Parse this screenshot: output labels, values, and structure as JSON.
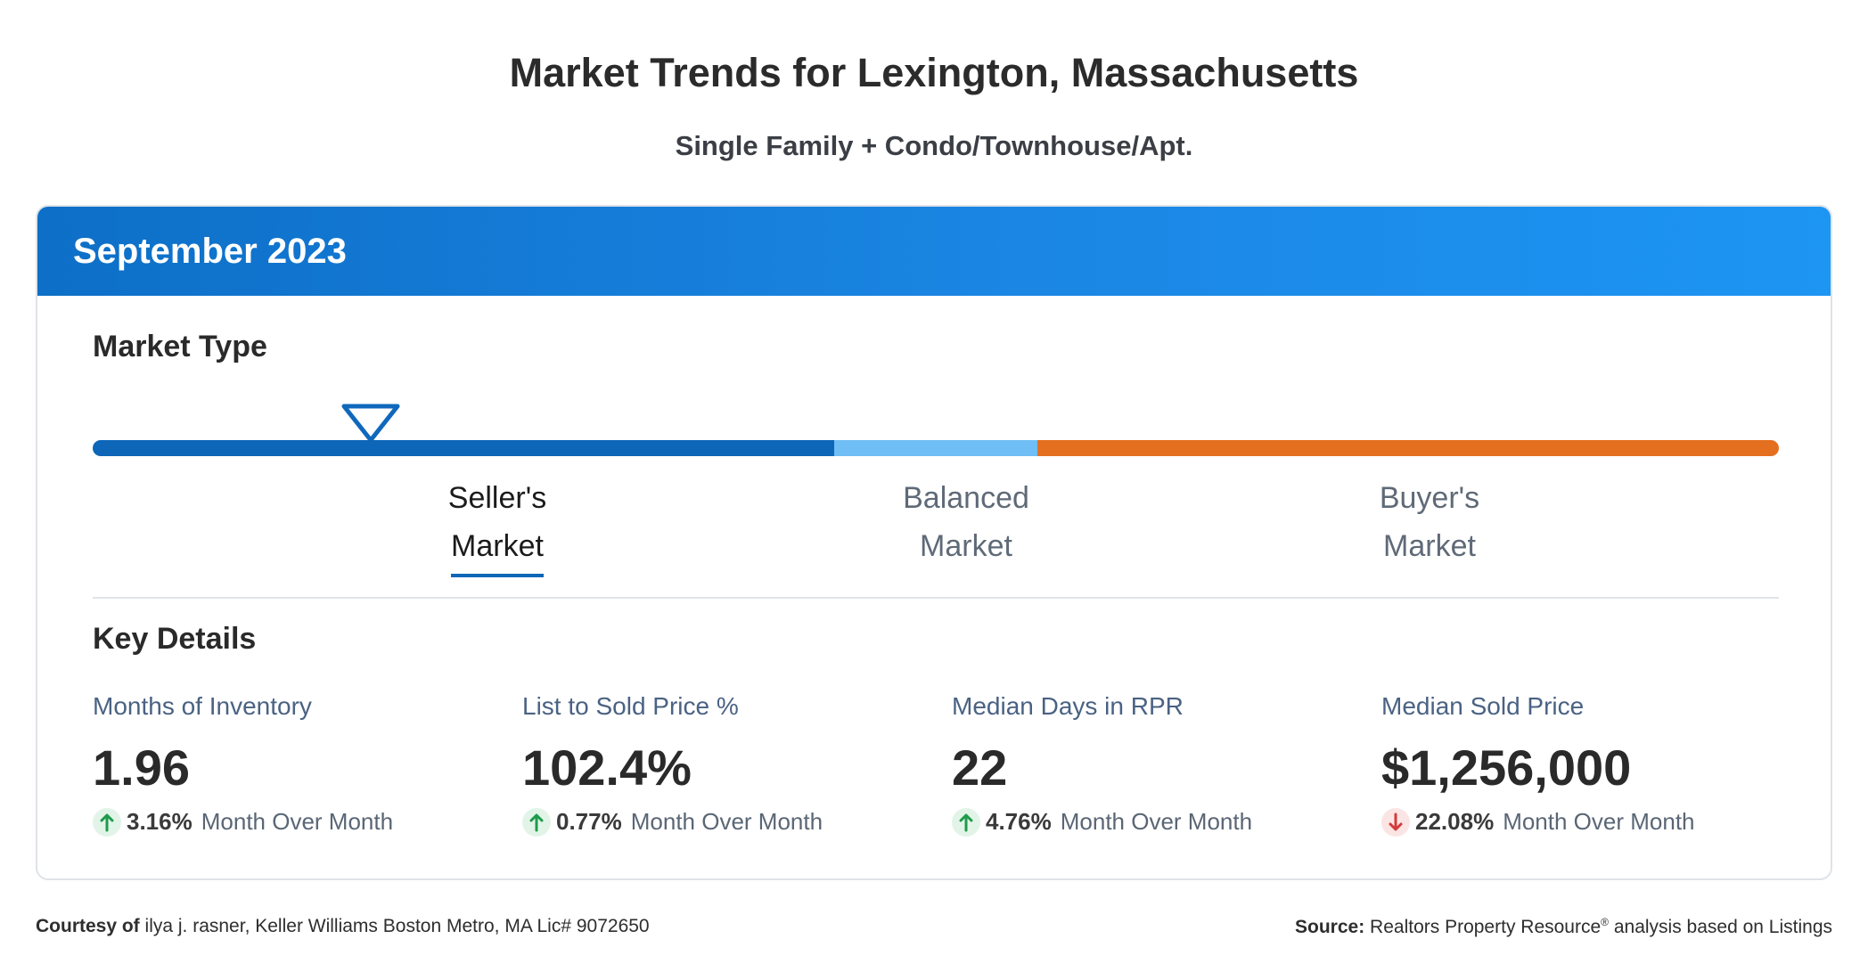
{
  "header": {
    "title": "Market Trends for Lexington, Massachusetts",
    "subtitle": "Single Family + Condo/Townhouse/Apt."
  },
  "card": {
    "period": "September 2023",
    "market_type": {
      "heading": "Market Type",
      "labels": [
        {
          "line1": "Seller's",
          "line2": "Market",
          "active": true
        },
        {
          "line1": "Balanced",
          "line2": "Market",
          "active": false
        },
        {
          "line1": "Buyer's",
          "line2": "Market",
          "active": false
        }
      ],
      "colors": {
        "seller": "#0d66b8",
        "balanced": "#6fbef5",
        "buyer": "#e46f1f"
      }
    },
    "key_details": {
      "heading": "Key Details",
      "metrics": [
        {
          "label": "Months of Inventory",
          "value": "1.96",
          "change": "3.16%",
          "direction": "up",
          "period": "Month Over Month"
        },
        {
          "label": "List to Sold Price %",
          "value": "102.4%",
          "change": "0.77%",
          "direction": "up",
          "period": "Month Over Month"
        },
        {
          "label": "Median Days in RPR",
          "value": "22",
          "change": "4.76%",
          "direction": "up",
          "period": "Month Over Month"
        },
        {
          "label": "Median Sold Price",
          "value": "$1,256,000",
          "change": "22.08%",
          "direction": "down",
          "period": "Month Over Month"
        }
      ]
    }
  },
  "footer": {
    "courtesy_label": "Courtesy of",
    "courtesy_text": "ilya j. rasner, Keller Williams Boston Metro, MA Lic# 9072650",
    "source_label": "Source:",
    "source_text_a": "Realtors Property Resource",
    "source_sup": "®",
    "source_text_b": "analysis based on Listings"
  },
  "icons": {
    "up": "arrow-up-icon",
    "down": "arrow-down-icon",
    "marker": "triangle-marker-icon"
  },
  "colors": {
    "up": "#1f9a4b",
    "down": "#d43a3a",
    "accent": "#0d66b8"
  }
}
